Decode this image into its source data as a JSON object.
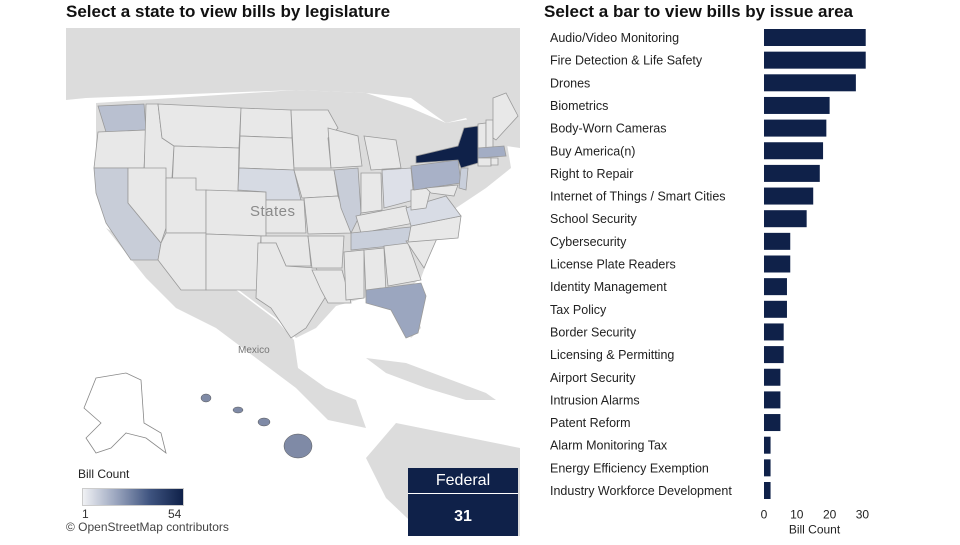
{
  "map_panel": {
    "title": "Select a state to view bills by legislature",
    "country_label": "States",
    "mexico_label": "Mexico",
    "legend": {
      "title": "Bill Count",
      "min": "1",
      "max": "54"
    },
    "credit": "© OpenStreetMap contributors",
    "federal": {
      "label": "Federal",
      "count": "31"
    },
    "colors": {
      "land": "#dcdcdc",
      "state_default": "#e8e8e8",
      "water": "#ffffff",
      "border": "#9a9a9a",
      "max": "#0f2149"
    }
  },
  "bar_panel": {
    "title": "Select a bar to view bills by issue area"
  },
  "chart_data": {
    "type": "bar",
    "orientation": "horizontal",
    "categories": [
      "Audio/Video Monitoring",
      "Fire Detection & Life Safety",
      "Drones",
      "Biometrics",
      "Body-Worn Cameras",
      "Buy America(n)",
      "Right to Repair",
      "Internet of Things / Smart Cities",
      "School Security",
      "Cybersecurity",
      "License Plate Readers",
      "Identity Management",
      "Tax Policy",
      "Border Security",
      "Licensing & Permitting",
      "Airport Security",
      "Intrusion Alarms",
      "Patent Reform",
      "Alarm Monitoring Tax",
      "Energy Efficiency Exemption",
      "Industry Workforce Development"
    ],
    "values": [
      31,
      31,
      28,
      20,
      19,
      18,
      17,
      15,
      13,
      8,
      8,
      7,
      7,
      6,
      6,
      5,
      5,
      5,
      2,
      2,
      2
    ],
    "xlabel": "Bill Count",
    "ticks": [
      "0",
      "10",
      "20",
      "30"
    ],
    "xlim": [
      0,
      32
    ],
    "bar_color": "#0f2149",
    "grid": false
  }
}
